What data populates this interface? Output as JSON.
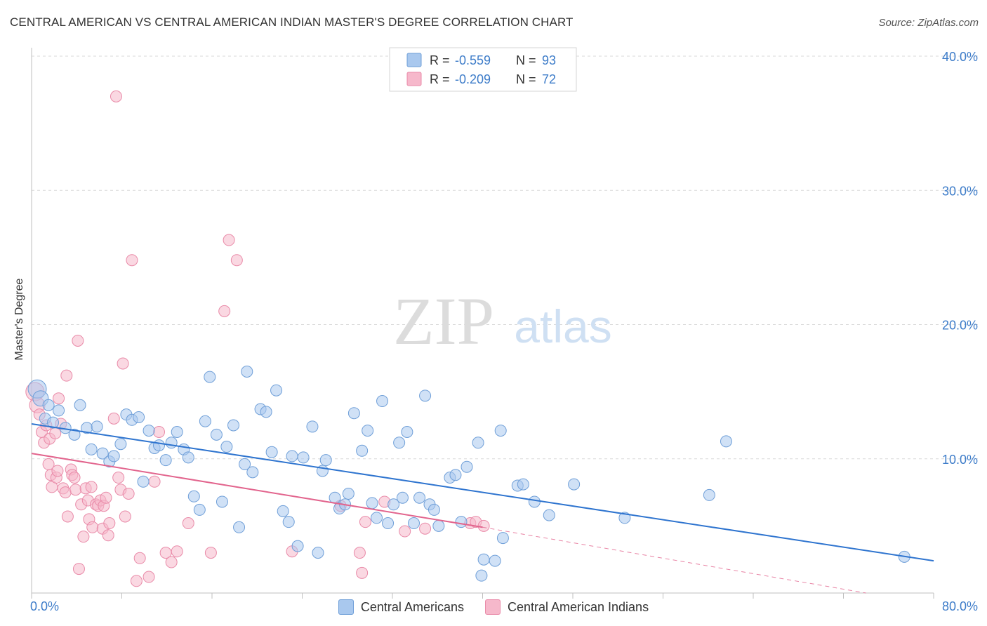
{
  "title": "CENTRAL AMERICAN VS CENTRAL AMERICAN INDIAN MASTER'S DEGREE CORRELATION CHART",
  "source": "Source: ZipAtlas.com",
  "watermark": {
    "zip": "ZIP",
    "atlas": "atlas"
  },
  "colors": {
    "blue_fill": "#a9c8ee",
    "blue_stroke": "#6f9fd8",
    "blue_line": "#2e74cf",
    "pink_fill": "#f6b8cb",
    "pink_stroke": "#e98aa8",
    "pink_line": "#e2648d",
    "axis_text": "#3d7cc9",
    "grid": "#d9d9d9"
  },
  "chart_data": {
    "type": "scatter",
    "title": "CENTRAL AMERICAN VS CENTRAL AMERICAN INDIAN MASTER'S DEGREE CORRELATION CHART",
    "xlabel": "",
    "ylabel": "Master's Degree",
    "xlim": [
      0,
      80
    ],
    "ylim": [
      0,
      40
    ],
    "x_tick_labels": [
      "0.0%",
      "80.0%"
    ],
    "y_ticks": [
      10,
      20,
      30,
      40
    ],
    "y_tick_labels": [
      "10.0%",
      "20.0%",
      "30.0%",
      "40.0%"
    ],
    "legend_top": [
      {
        "r_label": "R =",
        "r_value": "-0.559",
        "n_label": "N =",
        "n_value": "93"
      },
      {
        "r_label": "R =",
        "r_value": "-0.209",
        "n_label": "N =",
        "n_value": "72"
      }
    ],
    "series": [
      {
        "name": "Central Americans",
        "color": "blue",
        "trend": {
          "x0": 0,
          "y0": 12.6,
          "x1": 80,
          "y1": 2.4
        },
        "points": [
          [
            0.5,
            15.2
          ],
          [
            0.8,
            14.5
          ],
          [
            1.2,
            13.0
          ],
          [
            1.5,
            14.0
          ],
          [
            1.9,
            12.7
          ],
          [
            2.4,
            13.6
          ],
          [
            3.0,
            12.3
          ],
          [
            3.8,
            11.8
          ],
          [
            4.3,
            14.0
          ],
          [
            4.9,
            12.3
          ],
          [
            5.3,
            10.7
          ],
          [
            5.8,
            12.4
          ],
          [
            6.3,
            10.4
          ],
          [
            6.9,
            9.8
          ],
          [
            7.3,
            10.2
          ],
          [
            7.9,
            11.1
          ],
          [
            8.4,
            13.3
          ],
          [
            8.9,
            12.9
          ],
          [
            9.5,
            13.1
          ],
          [
            9.9,
            8.3
          ],
          [
            10.4,
            12.1
          ],
          [
            10.9,
            10.8
          ],
          [
            11.3,
            11.0
          ],
          [
            11.9,
            9.9
          ],
          [
            12.4,
            11.2
          ],
          [
            12.9,
            12.0
          ],
          [
            13.5,
            10.7
          ],
          [
            13.9,
            10.1
          ],
          [
            14.4,
            7.2
          ],
          [
            14.9,
            6.2
          ],
          [
            15.4,
            12.8
          ],
          [
            15.8,
            16.1
          ],
          [
            16.4,
            11.8
          ],
          [
            16.9,
            6.8
          ],
          [
            17.3,
            10.9
          ],
          [
            17.9,
            12.5
          ],
          [
            18.4,
            4.9
          ],
          [
            18.9,
            9.6
          ],
          [
            19.1,
            16.5
          ],
          [
            19.6,
            9.0
          ],
          [
            20.3,
            13.7
          ],
          [
            20.8,
            13.5
          ],
          [
            21.3,
            10.5
          ],
          [
            21.7,
            15.1
          ],
          [
            22.3,
            6.1
          ],
          [
            22.8,
            5.3
          ],
          [
            23.1,
            10.2
          ],
          [
            23.6,
            3.5
          ],
          [
            24.1,
            10.1
          ],
          [
            24.9,
            12.4
          ],
          [
            25.4,
            3.0
          ],
          [
            25.8,
            9.1
          ],
          [
            26.1,
            9.9
          ],
          [
            26.9,
            7.1
          ],
          [
            27.3,
            6.3
          ],
          [
            27.8,
            6.6
          ],
          [
            28.1,
            7.4
          ],
          [
            28.6,
            13.4
          ],
          [
            29.3,
            10.6
          ],
          [
            29.8,
            12.1
          ],
          [
            30.2,
            6.7
          ],
          [
            30.6,
            5.6
          ],
          [
            31.1,
            14.3
          ],
          [
            31.6,
            5.2
          ],
          [
            32.1,
            6.6
          ],
          [
            32.6,
            11.2
          ],
          [
            32.9,
            7.1
          ],
          [
            33.3,
            12.0
          ],
          [
            33.9,
            5.2
          ],
          [
            34.4,
            7.1
          ],
          [
            34.9,
            14.7
          ],
          [
            35.3,
            6.6
          ],
          [
            35.7,
            6.2
          ],
          [
            36.1,
            5.0
          ],
          [
            37.1,
            8.6
          ],
          [
            37.6,
            8.8
          ],
          [
            38.1,
            5.3
          ],
          [
            38.6,
            9.4
          ],
          [
            39.6,
            11.2
          ],
          [
            39.9,
            1.3
          ],
          [
            40.1,
            2.5
          ],
          [
            41.1,
            2.4
          ],
          [
            41.6,
            12.1
          ],
          [
            41.8,
            4.1
          ],
          [
            43.1,
            8.0
          ],
          [
            43.6,
            8.1
          ],
          [
            44.6,
            6.8
          ],
          [
            45.9,
            5.8
          ],
          [
            48.1,
            8.1
          ],
          [
            52.6,
            5.6
          ],
          [
            60.1,
            7.3
          ],
          [
            61.6,
            11.3
          ],
          [
            77.4,
            2.7
          ]
        ]
      },
      {
        "name": "Central American Indians",
        "color": "pink",
        "trend": {
          "x0": 0,
          "y0": 10.4,
          "x1": 40,
          "y1": 4.9
        },
        "trend_ext": {
          "x0": 40,
          "y0": 4.9,
          "x1": 74,
          "y1": 0.0
        },
        "points": [
          [
            0.3,
            15.0
          ],
          [
            0.5,
            14.0
          ],
          [
            0.7,
            13.3
          ],
          [
            0.9,
            12.0
          ],
          [
            1.1,
            11.2
          ],
          [
            1.3,
            12.5
          ],
          [
            1.5,
            9.6
          ],
          [
            1.6,
            11.5
          ],
          [
            1.7,
            8.8
          ],
          [
            1.8,
            7.9
          ],
          [
            2.1,
            11.9
          ],
          [
            2.2,
            8.6
          ],
          [
            2.3,
            9.1
          ],
          [
            2.4,
            14.5
          ],
          [
            2.6,
            12.6
          ],
          [
            2.8,
            7.8
          ],
          [
            3.0,
            7.5
          ],
          [
            3.1,
            16.2
          ],
          [
            3.2,
            5.7
          ],
          [
            3.5,
            9.2
          ],
          [
            3.6,
            8.8
          ],
          [
            3.8,
            8.6
          ],
          [
            3.9,
            7.7
          ],
          [
            4.1,
            18.8
          ],
          [
            4.2,
            1.8
          ],
          [
            4.4,
            6.6
          ],
          [
            4.6,
            4.2
          ],
          [
            4.8,
            7.8
          ],
          [
            5.0,
            6.9
          ],
          [
            5.1,
            5.5
          ],
          [
            5.3,
            7.9
          ],
          [
            5.4,
            4.9
          ],
          [
            5.7,
            6.6
          ],
          [
            5.9,
            6.5
          ],
          [
            6.1,
            6.9
          ],
          [
            6.3,
            4.8
          ],
          [
            6.4,
            6.5
          ],
          [
            6.6,
            7.1
          ],
          [
            6.8,
            4.3
          ],
          [
            6.9,
            5.2
          ],
          [
            7.3,
            13.0
          ],
          [
            7.5,
            37.0
          ],
          [
            7.7,
            8.6
          ],
          [
            7.9,
            7.7
          ],
          [
            8.1,
            17.1
          ],
          [
            8.3,
            5.7
          ],
          [
            8.6,
            7.4
          ],
          [
            8.9,
            24.8
          ],
          [
            9.3,
            0.9
          ],
          [
            9.6,
            2.6
          ],
          [
            10.4,
            1.2
          ],
          [
            10.9,
            8.3
          ],
          [
            11.3,
            12.0
          ],
          [
            11.9,
            3.0
          ],
          [
            12.4,
            2.3
          ],
          [
            12.9,
            3.1
          ],
          [
            13.9,
            5.2
          ],
          [
            15.9,
            3.0
          ],
          [
            17.1,
            21.0
          ],
          [
            17.5,
            26.3
          ],
          [
            18.2,
            24.8
          ],
          [
            23.1,
            3.1
          ],
          [
            27.4,
            6.5
          ],
          [
            29.1,
            3.0
          ],
          [
            29.3,
            1.5
          ],
          [
            29.6,
            5.3
          ],
          [
            31.3,
            6.8
          ],
          [
            33.1,
            4.6
          ],
          [
            34.9,
            4.8
          ],
          [
            38.9,
            5.2
          ],
          [
            39.4,
            5.3
          ],
          [
            40.1,
            5.0
          ]
        ]
      }
    ]
  }
}
